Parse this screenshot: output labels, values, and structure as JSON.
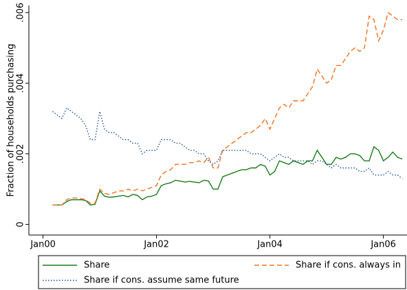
{
  "chart_data": {
    "type": "line",
    "y_label": "Fraction of households purchasing",
    "x": [
      "2000-03",
      "2000-04",
      "2000-05",
      "2000-06",
      "2000-07",
      "2000-08",
      "2000-09",
      "2000-10",
      "2000-11",
      "2000-12",
      "2001-01",
      "2001-02",
      "2001-03",
      "2001-04",
      "2001-05",
      "2001-06",
      "2001-07",
      "2001-08",
      "2001-09",
      "2001-10",
      "2001-11",
      "2001-12",
      "2002-01",
      "2002-02",
      "2002-03",
      "2002-04",
      "2002-05",
      "2002-06",
      "2002-07",
      "2002-08",
      "2002-09",
      "2002-10",
      "2002-11",
      "2002-12",
      "2003-01",
      "2003-02",
      "2003-03",
      "2003-04",
      "2003-05",
      "2003-06",
      "2003-07",
      "2003-08",
      "2003-09",
      "2003-10",
      "2003-11",
      "2003-12",
      "2004-01",
      "2004-02",
      "2004-03",
      "2004-04",
      "2004-05",
      "2004-06",
      "2004-07",
      "2004-08",
      "2004-09",
      "2004-10",
      "2004-11",
      "2004-12",
      "2005-01",
      "2005-02",
      "2005-03",
      "2005-04",
      "2005-05",
      "2005-06",
      "2005-07",
      "2005-08",
      "2005-09",
      "2005-10",
      "2005-11",
      "2005-12",
      "2006-01",
      "2006-02",
      "2006-03",
      "2006-04",
      "2006-05"
    ],
    "series": [
      {
        "name": "Share",
        "color": "#1a7a1a",
        "dash": "solid",
        "values": [
          0.00055,
          0.00055,
          0.00055,
          0.00065,
          0.0007,
          0.0007,
          0.0007,
          0.00068,
          0.00055,
          0.00057,
          0.00095,
          0.0008,
          0.00077,
          0.00078,
          0.0008,
          0.00082,
          0.00078,
          0.00085,
          0.00082,
          0.0007,
          0.00078,
          0.0008,
          0.00085,
          0.0011,
          0.00115,
          0.00118,
          0.00125,
          0.00123,
          0.0012,
          0.00122,
          0.0012,
          0.00118,
          0.00125,
          0.00123,
          0.001,
          0.001,
          0.00135,
          0.0014,
          0.00145,
          0.0015,
          0.00155,
          0.00155,
          0.0016,
          0.0016,
          0.0017,
          0.00165,
          0.0014,
          0.0015,
          0.0018,
          0.00175,
          0.0017,
          0.0018,
          0.00175,
          0.0017,
          0.0018,
          0.0018,
          0.0021,
          0.0019,
          0.0017,
          0.0017,
          0.0019,
          0.00185,
          0.0019,
          0.002,
          0.002,
          0.00195,
          0.0018,
          0.0018,
          0.0022,
          0.0021,
          0.0018,
          0.0019,
          0.00205,
          0.0019,
          0.00185
        ]
      },
      {
        "name": "Share if cons. always in",
        "color": "#f07020",
        "dash": "dashed",
        "values": [
          0.00055,
          0.00055,
          0.00055,
          0.0007,
          0.00075,
          0.00075,
          0.00073,
          0.0007,
          0.0006,
          0.0006,
          0.001,
          0.00088,
          0.00085,
          0.0009,
          0.00095,
          0.00095,
          0.001,
          0.00095,
          0.001,
          0.00095,
          0.001,
          0.00105,
          0.0011,
          0.0014,
          0.0015,
          0.00155,
          0.0017,
          0.0017,
          0.0017,
          0.00175,
          0.00175,
          0.0018,
          0.00175,
          0.0019,
          0.0016,
          0.0016,
          0.0021,
          0.0022,
          0.0023,
          0.0024,
          0.0025,
          0.0026,
          0.0026,
          0.0027,
          0.0028,
          0.003,
          0.0027,
          0.003,
          0.0033,
          0.0034,
          0.0033,
          0.0035,
          0.0035,
          0.0035,
          0.0037,
          0.0039,
          0.0044,
          0.0042,
          0.004,
          0.0041,
          0.0045,
          0.0045,
          0.0047,
          0.0049,
          0.005,
          0.0049,
          0.005,
          0.0059,
          0.0058,
          0.0052,
          0.0055,
          0.006,
          0.0059,
          0.0058,
          0.0058
        ]
      },
      {
        "name": "Share if cons. assume same future",
        "color": "#1f4e9a",
        "dash": "dotted",
        "values": [
          0.0032,
          0.0031,
          0.003,
          0.0033,
          0.0032,
          0.0031,
          0.003,
          0.0028,
          0.0024,
          0.0024,
          0.0032,
          0.0027,
          0.0026,
          0.0026,
          0.0025,
          0.0024,
          0.0024,
          0.0023,
          0.0023,
          0.002,
          0.0021,
          0.0021,
          0.0021,
          0.0024,
          0.0024,
          0.0024,
          0.0023,
          0.0023,
          0.0022,
          0.0021,
          0.0021,
          0.002,
          0.002,
          0.0018,
          0.0017,
          0.0018,
          0.0021,
          0.0021,
          0.0021,
          0.0021,
          0.0021,
          0.0021,
          0.002,
          0.002,
          0.002,
          0.0019,
          0.0018,
          0.0019,
          0.002,
          0.0019,
          0.0019,
          0.0018,
          0.0018,
          0.0018,
          0.0018,
          0.0017,
          0.0018,
          0.0018,
          0.0017,
          0.0016,
          0.0017,
          0.0016,
          0.0016,
          0.0016,
          0.0016,
          0.0015,
          0.0015,
          0.0016,
          0.0014,
          0.0014,
          0.0014,
          0.0015,
          0.0014,
          0.0014,
          0.0013
        ]
      }
    ],
    "xlim": [
      "1999-10",
      "2006-06"
    ],
    "xticks": [
      {
        "value": "2000-01",
        "label": "Jan00"
      },
      {
        "value": "2002-01",
        "label": "Jan02"
      },
      {
        "value": "2004-01",
        "label": "Jan04"
      },
      {
        "value": "2006-01",
        "label": "Jan06"
      }
    ],
    "ylim": [
      -0.0003,
      0.0062
    ],
    "yticks": [
      0,
      {
        "value": 0.002,
        "label": ".002"
      },
      {
        "value": 0.004,
        "label": ".004"
      },
      {
        "value": 0.006,
        "label": ".006"
      }
    ],
    "grid": false,
    "legend": "bottom"
  }
}
